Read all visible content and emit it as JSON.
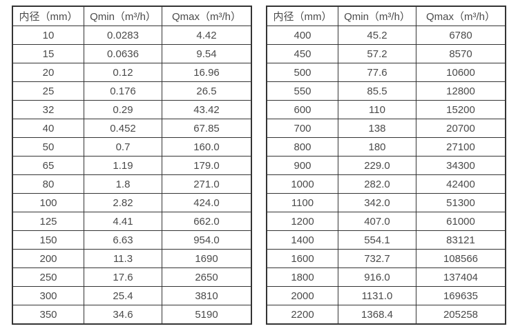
{
  "colors": {
    "border": "#333333",
    "text": "#4a4a4a",
    "background": "#ffffff"
  },
  "tables": [
    {
      "name": "flow-table-small-diameters",
      "headers": [
        "内径（mm）",
        "Qmin（m³/h）",
        "Qmax（m³/h）"
      ],
      "rows": [
        [
          "10",
          "0.0283",
          "4.42"
        ],
        [
          "15",
          "0.0636",
          "9.54"
        ],
        [
          "20",
          "0.12",
          "16.96"
        ],
        [
          "25",
          "0.176",
          "26.5"
        ],
        [
          "32",
          "0.29",
          "43.42"
        ],
        [
          "40",
          "0.452",
          "67.85"
        ],
        [
          "50",
          "0.7",
          "160.0"
        ],
        [
          "65",
          "1.19",
          "179.0"
        ],
        [
          "80",
          "1.8",
          "271.0"
        ],
        [
          "100",
          "2.82",
          "424.0"
        ],
        [
          "125",
          "4.41",
          "662.0"
        ],
        [
          "150",
          "6.63",
          "954.0"
        ],
        [
          "200",
          "11.3",
          "1690"
        ],
        [
          "250",
          "17.6",
          "2650"
        ],
        [
          "300",
          "25.4",
          "3810"
        ],
        [
          "350",
          "34.6",
          "5190"
        ]
      ]
    },
    {
      "name": "flow-table-large-diameters",
      "headers": [
        "内径（mm）",
        "Qmin（m³/h）",
        "Qmax（m³/h）"
      ],
      "rows": [
        [
          "400",
          "45.2",
          "6780"
        ],
        [
          "450",
          "57.2",
          "8570"
        ],
        [
          "500",
          "77.6",
          "10600"
        ],
        [
          "550",
          "85.5",
          "12800"
        ],
        [
          "600",
          "110",
          "15200"
        ],
        [
          "700",
          "138",
          "20700"
        ],
        [
          "800",
          "180",
          "27100"
        ],
        [
          "900",
          "229.0",
          "34300"
        ],
        [
          "1000",
          "282.0",
          "42400"
        ],
        [
          "1100",
          "342.0",
          "51300"
        ],
        [
          "1200",
          "407.0",
          "61000"
        ],
        [
          "1400",
          "554.1",
          "83121"
        ],
        [
          "1600",
          "732.7",
          "108566"
        ],
        [
          "1800",
          "916.0",
          "137404"
        ],
        [
          "2000",
          "1131.0",
          "169635"
        ],
        [
          "2200",
          "1368.4",
          "205258"
        ]
      ]
    }
  ]
}
